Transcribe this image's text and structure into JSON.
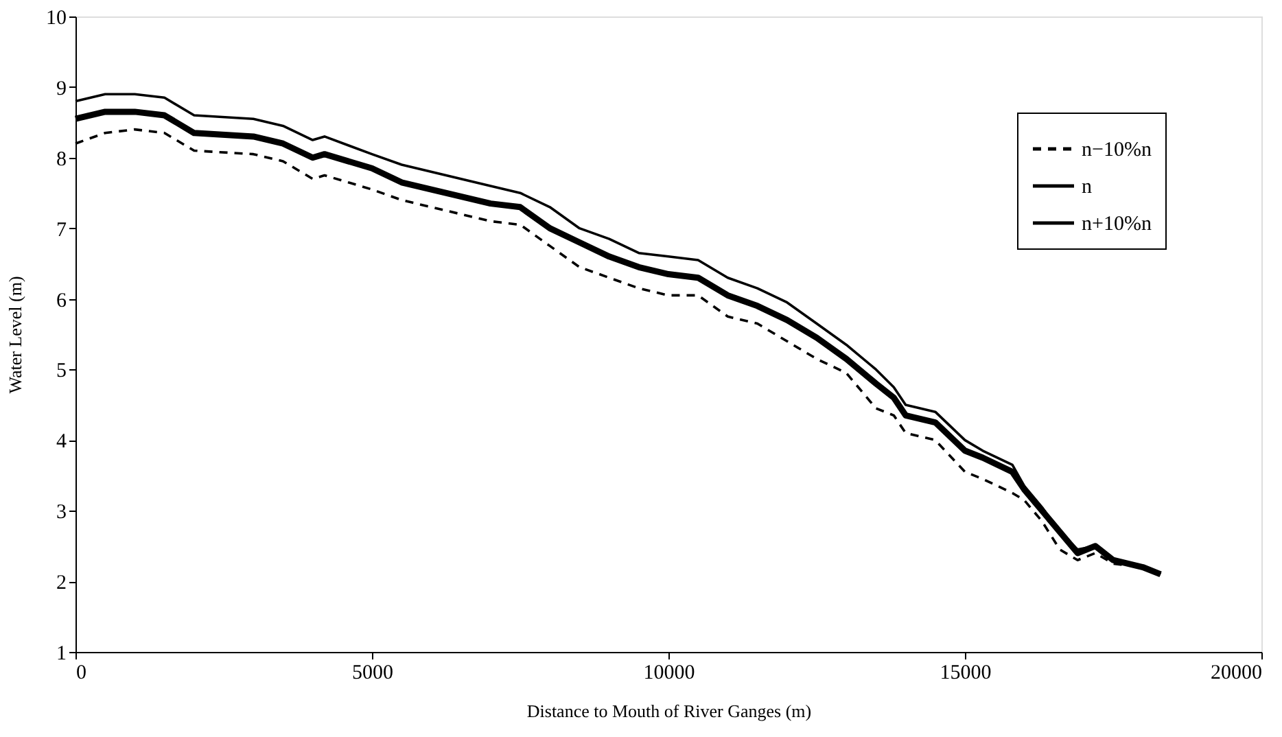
{
  "chart_data": {
    "type": "line",
    "xlabel": "Distance to Mouth of River Ganges (m)",
    "ylabel": "Water Level (m)",
    "x": [
      0,
      500,
      1000,
      1500,
      2000,
      3000,
      3500,
      4000,
      4200,
      5000,
      5500,
      7000,
      7500,
      8000,
      8500,
      9000,
      9500,
      10000,
      10500,
      11000,
      11500,
      12000,
      12500,
      13000,
      13500,
      13800,
      14000,
      14500,
      15000,
      15300,
      15800,
      16000,
      16300,
      16600,
      16900,
      17200,
      17500,
      18000,
      18300
    ],
    "series": [
      {
        "name": "n−10%n",
        "color": "#000000",
        "line_style": "dashed",
        "values": [
          8.2,
          8.35,
          8.4,
          8.35,
          8.1,
          8.05,
          7.95,
          7.7,
          7.75,
          7.55,
          7.4,
          7.1,
          7.05,
          6.75,
          6.45,
          6.3,
          6.15,
          6.05,
          6.05,
          5.75,
          5.65,
          5.4,
          5.15,
          4.95,
          4.45,
          4.35,
          4.1,
          4.0,
          3.55,
          3.45,
          3.25,
          3.15,
          2.85,
          2.45,
          2.3,
          2.4,
          2.25,
          2.2,
          2.1
        ]
      },
      {
        "name": "n",
        "color": "#000000",
        "line_style": "solid",
        "values": [
          8.55,
          8.65,
          8.65,
          8.6,
          8.35,
          8.3,
          8.2,
          8.0,
          8.05,
          7.85,
          7.65,
          7.35,
          7.3,
          7.0,
          6.8,
          6.6,
          6.45,
          6.35,
          6.3,
          6.05,
          5.9,
          5.7,
          5.45,
          5.15,
          4.8,
          4.6,
          4.35,
          4.25,
          3.85,
          3.75,
          3.55,
          3.3,
          3.0,
          2.7,
          2.4,
          2.5,
          2.3,
          2.2,
          2.1
        ]
      },
      {
        "name": "n+10%n",
        "color": "#000000",
        "line_style": "solid",
        "values": [
          8.8,
          8.9,
          8.9,
          8.85,
          8.6,
          8.55,
          8.45,
          8.25,
          8.3,
          8.05,
          7.9,
          7.6,
          7.5,
          7.3,
          7.0,
          6.85,
          6.65,
          6.6,
          6.55,
          6.3,
          6.15,
          5.95,
          5.65,
          5.35,
          5.0,
          4.75,
          4.5,
          4.4,
          4.0,
          3.85,
          3.65,
          3.35,
          3.05,
          2.7,
          2.45,
          2.5,
          2.3,
          2.2,
          2.1
        ]
      }
    ],
    "xlim": [
      0,
      20000
    ],
    "xticks": [
      0,
      {
        "value": 5000,
        "label": "5000"
      },
      {
        "value": 10000,
        "label": "10000"
      },
      {
        "value": 15000,
        "label": "15000"
      },
      {
        "value": 20000,
        "label": "20000"
      }
    ],
    "ylim": [
      1,
      10
    ],
    "yticks": [
      1,
      2,
      3,
      4,
      5,
      6,
      7,
      8,
      9,
      10
    ],
    "grid": false,
    "legend": "top right",
    "marker": "none"
  }
}
